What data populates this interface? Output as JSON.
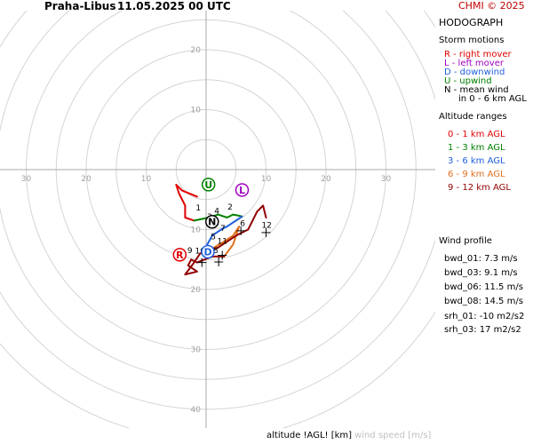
{
  "header": {
    "station": "Praha-Libus",
    "datetime": "11.05.2025 00 UTC",
    "credit": "CHMI © 2025"
  },
  "panel": {
    "title": "HODOGRAPH",
    "storm_motions_title": "Storm motions",
    "storm_motions": [
      {
        "text": "R - right mover",
        "color": "#e00000"
      },
      {
        "text": "L - left mover",
        "color": "#a000c0"
      },
      {
        "text": "D - downwind",
        "color": "#2060e0"
      },
      {
        "text": "U - upwind",
        "color": "#008000"
      },
      {
        "text": "N - mean wind",
        "color": "#000000"
      },
      {
        "text": "in 0 - 6 km AGL",
        "color": "#000000"
      }
    ],
    "altitude_ranges_title": "Altitude ranges",
    "altitude_ranges": [
      {
        "text": "0 - 1 km AGL",
        "color": "#e00000"
      },
      {
        "text": "1 - 3 km AGL",
        "color": "#008000"
      },
      {
        "text": "3 - 6 km AGL",
        "color": "#2060e0"
      },
      {
        "text": "6 - 9 km AGL",
        "color": "#e07020"
      },
      {
        "text": "9 - 12 km AGL",
        "color": "#900000"
      }
    ],
    "wind_profile_title": "Wind profile",
    "wind_profile": [
      "bwd_01: 7.3 m/s",
      "bwd_03: 9.1 m/s",
      "bwd_06: 11.5 m/s",
      "bwd_08: 14.5 m/s",
      "srh_01: -10 m2/s2",
      "srh_03: 17 m2/s2"
    ]
  },
  "footer": {
    "altitude_label": "altitude !AGL! [km]",
    "wind_speed_label": "wind speed [m/s]"
  },
  "chart_data": {
    "type": "line",
    "title": "HODOGRAPH",
    "xlim": [
      -30,
      30
    ],
    "ylim": [
      -40,
      30
    ],
    "rings": [
      5,
      10,
      15,
      20,
      25,
      30,
      35,
      40,
      45
    ],
    "x_ticks": [
      -30,
      -20,
      -10,
      10,
      20,
      30
    ],
    "y_ticks": [
      20,
      10,
      -10,
      -20,
      -30,
      -40
    ],
    "tick_labels_x": [
      "30",
      "20",
      "10",
      "10",
      "20",
      "30"
    ],
    "tick_labels_y": [
      "20",
      "10",
      "10",
      "20",
      "30",
      "40"
    ],
    "segments": [
      {
        "range": "0 - 1 km AGL",
        "color": "#e00000",
        "points": [
          [
            -1.5,
            -4.5
          ],
          [
            -4,
            -3.5
          ],
          [
            -5,
            -2.5
          ],
          [
            -4.5,
            -4
          ],
          [
            -3.5,
            -6
          ],
          [
            -3.5,
            -8
          ],
          [
            -2,
            -8.5
          ]
        ]
      },
      {
        "range": "1 - 3 km AGL",
        "color": "#008000",
        "points": [
          [
            -2,
            -8.5
          ],
          [
            0.5,
            -8
          ],
          [
            2,
            -7.5
          ],
          [
            3.5,
            -8
          ],
          [
            4.5,
            -7.5
          ],
          [
            6,
            -7.8
          ]
        ]
      },
      {
        "range": "3 - 6 km AGL",
        "color": "#2060e0",
        "points": [
          [
            6,
            -7.8
          ],
          [
            3.5,
            -9.5
          ],
          [
            2.5,
            -10
          ],
          [
            1,
            -11
          ],
          [
            0.2,
            -12.5
          ],
          [
            0.5,
            -13.5
          ]
        ]
      },
      {
        "range": "6 - 9 km AGL",
        "color": "#e07020",
        "points": [
          [
            0.5,
            -13.5
          ],
          [
            3,
            -12
          ],
          [
            4.5,
            -11
          ],
          [
            5.5,
            -9.5
          ],
          [
            4.5,
            -12.5
          ],
          [
            3,
            -14.5
          ]
        ]
      },
      {
        "range": "9 - 12 km AGL",
        "color": "#900000",
        "points": [
          [
            3,
            -14.5
          ],
          [
            1,
            -14.5
          ],
          [
            -1.5,
            -15.5
          ],
          [
            -2.5,
            -15
          ],
          [
            -3,
            -16
          ],
          [
            -1.5,
            -17
          ],
          [
            -3.5,
            -17.5
          ],
          [
            -2,
            -15.5
          ],
          [
            -1,
            -14
          ],
          [
            2,
            -13
          ],
          [
            5,
            -11
          ],
          [
            7,
            -10
          ],
          [
            8.5,
            -7
          ],
          [
            9.5,
            -6
          ],
          [
            10,
            -8
          ]
        ]
      }
    ],
    "altitude_labels": [
      {
        "text": "1",
        "x": -1.3,
        "y": -6.8
      },
      {
        "text": "2",
        "x": 4,
        "y": -6.7
      },
      {
        "text": "3",
        "x": 0.6,
        "y": -8.3
      },
      {
        "text": "4",
        "x": 1.8,
        "y": -7.3
      },
      {
        "text": "5",
        "x": 1.2,
        "y": -11.6
      },
      {
        "text": "6",
        "x": 6.1,
        "y": -9.4
      },
      {
        "text": "7",
        "x": 2.8,
        "y": -10.2
      },
      {
        "text": "8",
        "x": 1.6,
        "y": -13.9
      },
      {
        "text": "9",
        "x": -2.7,
        "y": -13.9
      },
      {
        "text": "10",
        "x": -1,
        "y": -14
      },
      {
        "text": "11",
        "x": 2.7,
        "y": -12.4
      },
      {
        "text": "12",
        "x": 10.1,
        "y": -9.7
      }
    ],
    "crosses": [
      {
        "x": 10,
        "y": -10.5
      },
      {
        "x": 5.8,
        "y": -10.2
      },
      {
        "x": 2.7,
        "y": -14.3
      },
      {
        "x": 2.1,
        "y": -15.4
      },
      {
        "x": -0.7,
        "y": -15.5
      }
    ],
    "storm_markers": [
      {
        "letter": "R",
        "x": -4.4,
        "y": -14.2,
        "color": "#e00000"
      },
      {
        "letter": "L",
        "x": 6,
        "y": -3.4,
        "color": "#a000c0"
      },
      {
        "letter": "D",
        "x": 0.3,
        "y": -13.7,
        "color": "#2060e0"
      },
      {
        "letter": "U",
        "x": 0.4,
        "y": -2.5,
        "color": "#008000"
      },
      {
        "letter": "N",
        "x": 1,
        "y": -8.7,
        "color": "#000000"
      }
    ]
  }
}
